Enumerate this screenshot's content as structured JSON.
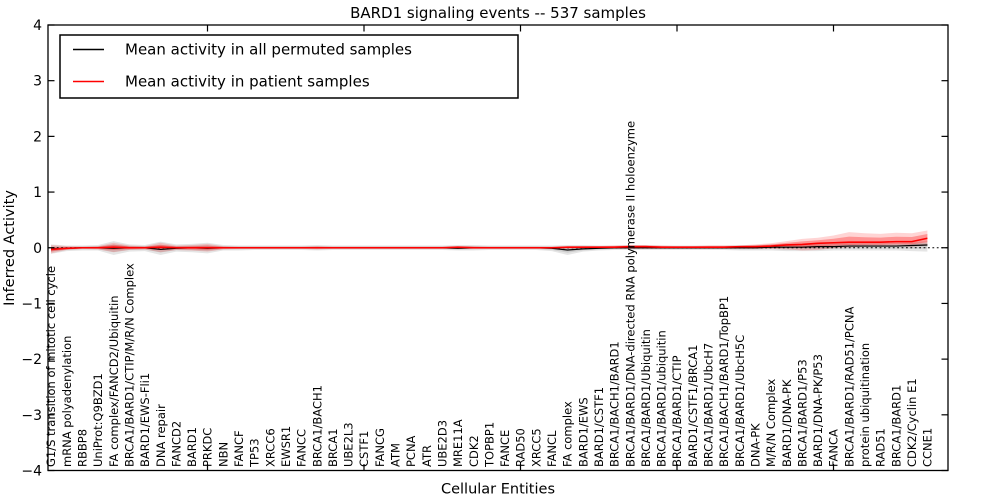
{
  "chart": {
    "title": "BARD1 signaling events -- 537 samples",
    "xlabel": "Cellular Entities",
    "ylabel": "Inferred Activity",
    "legend": {
      "permuted": "Mean activity in all permuted samples",
      "patient": "Mean activity in patient samples"
    }
  },
  "chart_data": {
    "type": "line",
    "title": "BARD1 signaling events -- 537 samples",
    "xlabel": "Cellular Entities",
    "ylabel": "Inferred Activity",
    "ylim": [
      -4,
      4
    ],
    "yticks": [
      4,
      3,
      2,
      1,
      0,
      -1,
      -2,
      -3,
      -4
    ],
    "xtick_every": 10,
    "zero_line": "dotted",
    "grid": false,
    "legend_position": "upper left",
    "colors": {
      "permuted_line": "#000000",
      "patient_line": "#ff0000",
      "permuted_band": "rgba(0,0,0,0.10)",
      "patient_band_outer": "rgba(255,0,0,0.17)",
      "patient_band_inner": "rgba(255,0,0,0.30)"
    },
    "categories": [
      "G1/S transition of mitotic cell cycle",
      "mRNA polyadenylation",
      "RBBP8",
      "UniProt:Q9BZD1",
      "FA complex/FANCD2/Ubiquitin",
      "BRCA1/BARD1/CTIP/M/R/N Complex",
      "BARD1/EWS-Fli1",
      "DNA repair",
      "FANCD2",
      "BARD1",
      "PRKDC",
      "NBN",
      "FANCF",
      "TP53",
      "XRCC6",
      "EWSR1",
      "FANCC",
      "BRCA1/BACH1",
      "BRCA1",
      "UBE2L3",
      "CSTF1",
      "FANCG",
      "ATM",
      "PCNA",
      "ATR",
      "UBE2D3",
      "MRE11A",
      "CDK2",
      "TOPBP1",
      "FANCE",
      "RAD50",
      "XRCC5",
      "FANCL",
      "FA complex",
      "BARD1/EWS",
      "BARD1/CSTF1",
      "BRCA1/BACH1/BARD1",
      "BRCA1/BARD1/DNA-directed RNA polymerase II holoenzyme",
      "BRCA1/BARD1/Ubiquitin",
      "BRCA1/BARD1/ubiquitin",
      "BRCA1/BARD1/CTIP",
      "BARD1/CSTF1/BRCA1",
      "BRCA1/BARD1/UbcH7",
      "BRCA1/BACH1/BARD1/TopBP1",
      "BRCA1/BARD1/UbcH5C",
      "DNA-PK",
      "M/R/N Complex",
      "BARD1/DNA-PK",
      "BRCA1/BARD1/P53",
      "BARD1/DNA-PK/P53",
      "FANCA",
      "BRCA1/BARD1/RAD51/PCNA",
      "protein ubiquitination",
      "RAD51",
      "BRCA1/BARD1",
      "CDK2/Cyclin E1",
      "CCNE1"
    ],
    "series": [
      {
        "name": "Mean activity in all permuted samples",
        "color": "#000000",
        "values": [
          -0.02,
          -0.01,
          0,
          0,
          -0.01,
          0,
          0,
          -0.03,
          -0.01,
          0,
          -0.01,
          0,
          0,
          0,
          0,
          0,
          0,
          0,
          0,
          0,
          0,
          0,
          0,
          0,
          0,
          0,
          -0.01,
          0,
          0,
          0,
          0,
          0,
          -0.01,
          -0.04,
          -0.02,
          -0.01,
          0,
          0,
          0,
          0,
          0,
          0,
          0,
          0,
          0,
          0,
          0.01,
          0.01,
          0.01,
          0.02,
          0.02,
          0.03,
          0.03,
          0.03,
          0.03,
          0.04,
          0.05
        ],
        "band_upper": [
          0.06,
          0.04,
          0.04,
          0.05,
          0.12,
          0.06,
          0.05,
          0.11,
          0.06,
          0.07,
          0.09,
          0.05,
          0.04,
          0.04,
          0.04,
          0.04,
          0.04,
          0.05,
          0.04,
          0.04,
          0.04,
          0.04,
          0.04,
          0.04,
          0.04,
          0.04,
          0.05,
          0.05,
          0.04,
          0.04,
          0.04,
          0.04,
          0.04,
          0.05,
          0.05,
          0.04,
          0.04,
          0.05,
          0.05,
          0.04,
          0.04,
          0.04,
          0.04,
          0.04,
          0.05,
          0.05,
          0.06,
          0.07,
          0.07,
          0.08,
          0.08,
          0.09,
          0.1,
          0.09,
          0.09,
          0.1,
          0.12
        ],
        "band_lower": [
          -0.11,
          -0.06,
          -0.05,
          -0.05,
          -0.13,
          -0.07,
          -0.06,
          -0.13,
          -0.07,
          -0.08,
          -0.1,
          -0.05,
          -0.05,
          -0.04,
          -0.04,
          -0.04,
          -0.04,
          -0.05,
          -0.04,
          -0.04,
          -0.04,
          -0.04,
          -0.04,
          -0.04,
          -0.04,
          -0.04,
          -0.05,
          -0.05,
          -0.04,
          -0.04,
          -0.04,
          -0.04,
          -0.06,
          -0.13,
          -0.07,
          -0.05,
          -0.04,
          -0.04,
          -0.04,
          -0.04,
          -0.04,
          -0.04,
          -0.04,
          -0.04,
          -0.05,
          -0.05,
          -0.05,
          -0.06,
          -0.06,
          -0.06,
          -0.05,
          -0.05,
          -0.05,
          -0.05,
          -0.05,
          -0.06,
          -0.07
        ]
      },
      {
        "name": "Mean activity in patient samples",
        "color": "#ff0000",
        "values": [
          -0.03,
          -0.01,
          0,
          0,
          0.01,
          0,
          0,
          0.01,
          0,
          0,
          0,
          0,
          0,
          0,
          0,
          0,
          0,
          0,
          0,
          0,
          0,
          0,
          0,
          0,
          0,
          0,
          0.01,
          0,
          0,
          0,
          0,
          0,
          0,
          0.01,
          0.01,
          0.01,
          0.01,
          0.02,
          0.02,
          0.01,
          0.01,
          0.01,
          0.01,
          0.01,
          0.02,
          0.02,
          0.03,
          0.05,
          0.06,
          0.08,
          0.09,
          0.1,
          0.1,
          0.1,
          0.11,
          0.11,
          0.17
        ],
        "band_upper": [
          0.05,
          0.03,
          0.02,
          0.03,
          0.09,
          0.04,
          0.03,
          0.09,
          0.04,
          0.05,
          0.07,
          0.03,
          0.02,
          0.02,
          0.02,
          0.02,
          0.02,
          0.03,
          0.02,
          0.02,
          0.02,
          0.02,
          0.02,
          0.02,
          0.02,
          0.02,
          0.03,
          0.03,
          0.02,
          0.02,
          0.02,
          0.02,
          0.02,
          0.03,
          0.03,
          0.03,
          0.04,
          0.05,
          0.05,
          0.04,
          0.03,
          0.03,
          0.04,
          0.04,
          0.04,
          0.06,
          0.08,
          0.12,
          0.16,
          0.18,
          0.22,
          0.28,
          0.26,
          0.25,
          0.27,
          0.26,
          0.31
        ],
        "band_lower": [
          -0.1,
          -0.04,
          -0.02,
          -0.03,
          -0.08,
          -0.04,
          -0.03,
          -0.08,
          -0.04,
          -0.05,
          -0.07,
          -0.03,
          -0.02,
          -0.02,
          -0.02,
          -0.02,
          -0.02,
          -0.03,
          -0.02,
          -0.02,
          -0.02,
          -0.02,
          -0.02,
          -0.02,
          -0.02,
          -0.02,
          -0.02,
          -0.02,
          -0.02,
          -0.02,
          -0.02,
          -0.02,
          -0.02,
          -0.02,
          -0.02,
          -0.02,
          -0.02,
          -0.02,
          -0.02,
          -0.02,
          -0.02,
          -0.02,
          -0.02,
          -0.02,
          -0.02,
          -0.02,
          -0.02,
          -0.03,
          -0.05,
          -0.04,
          -0.01,
          0.01,
          0.02,
          0.02,
          0.03,
          0.02,
          0.04
        ]
      }
    ]
  }
}
